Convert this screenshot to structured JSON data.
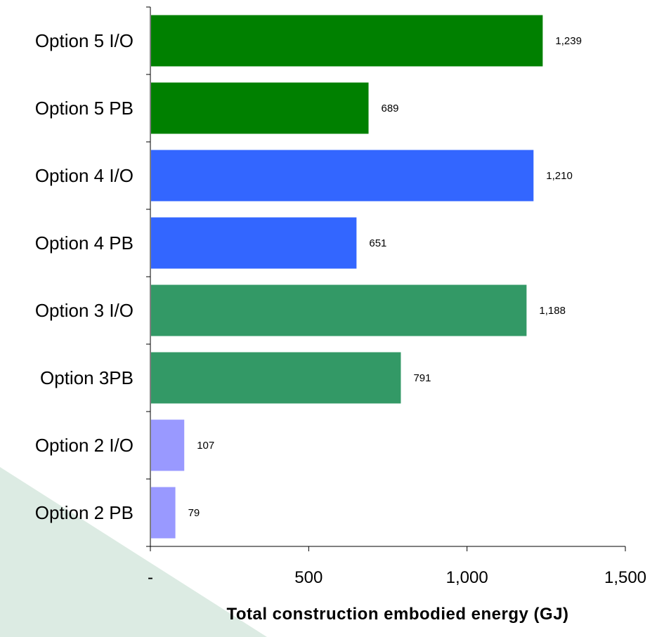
{
  "chart_data": {
    "type": "bar",
    "orientation": "horizontal",
    "categories": [
      "Option 5 I/O",
      "Option 5 PB",
      "Option 4 I/O",
      "Option 4 PB",
      "Option 3 I/O",
      "Option 3PB",
      "Option 2 I/O",
      "Option 2 PB"
    ],
    "values": [
      1239,
      689,
      1210,
      651,
      1188,
      791,
      107,
      79
    ],
    "value_labels": [
      "1,239",
      "689",
      "1,210",
      "651",
      "1,188",
      "791",
      "107",
      "79"
    ],
    "bar_colors": [
      "#008000",
      "#008000",
      "#3366ff",
      "#3366ff",
      "#339966",
      "#339966",
      "#9999ff",
      "#9999ff"
    ],
    "xlabel": "Total construction embodied energy (GJ)",
    "ylabel": "",
    "xlim": [
      0,
      1500
    ],
    "xticks": [
      0,
      500,
      1000,
      1500
    ],
    "xtick_labels": [
      "-",
      "500",
      "1,000",
      "1,500"
    ],
    "grid": false,
    "legend": "none"
  },
  "colors": {
    "background_accent": "#dcebe3",
    "axis": "#000000"
  }
}
